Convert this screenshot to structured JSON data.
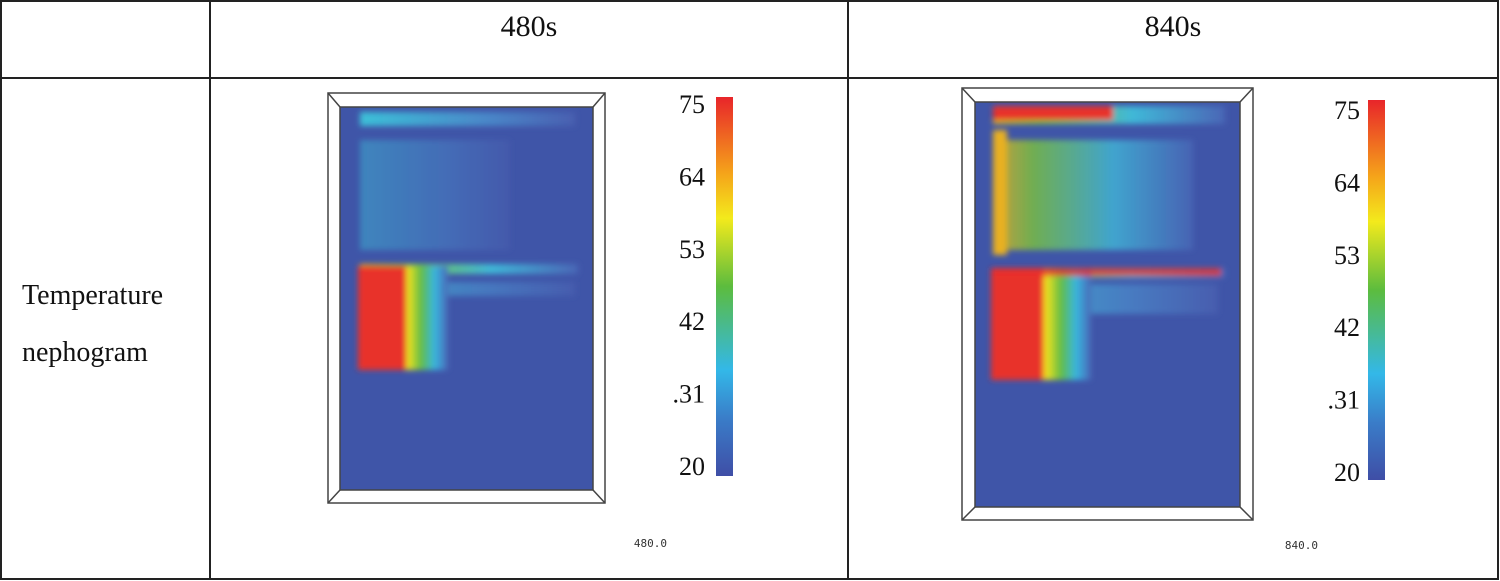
{
  "table": {
    "header": [
      "480s",
      "840s"
    ],
    "row_label": [
      "Temperature",
      "nephogram"
    ],
    "panels": [
      {
        "colorbar_labels": [
          "75",
          "64",
          "53",
          "42",
          ".31",
          "20"
        ],
        "time_label": "480.0"
      },
      {
        "colorbar_labels": [
          "75",
          "64",
          "53",
          "42",
          ".31",
          "20"
        ],
        "time_label": "840.0"
      }
    ]
  }
}
